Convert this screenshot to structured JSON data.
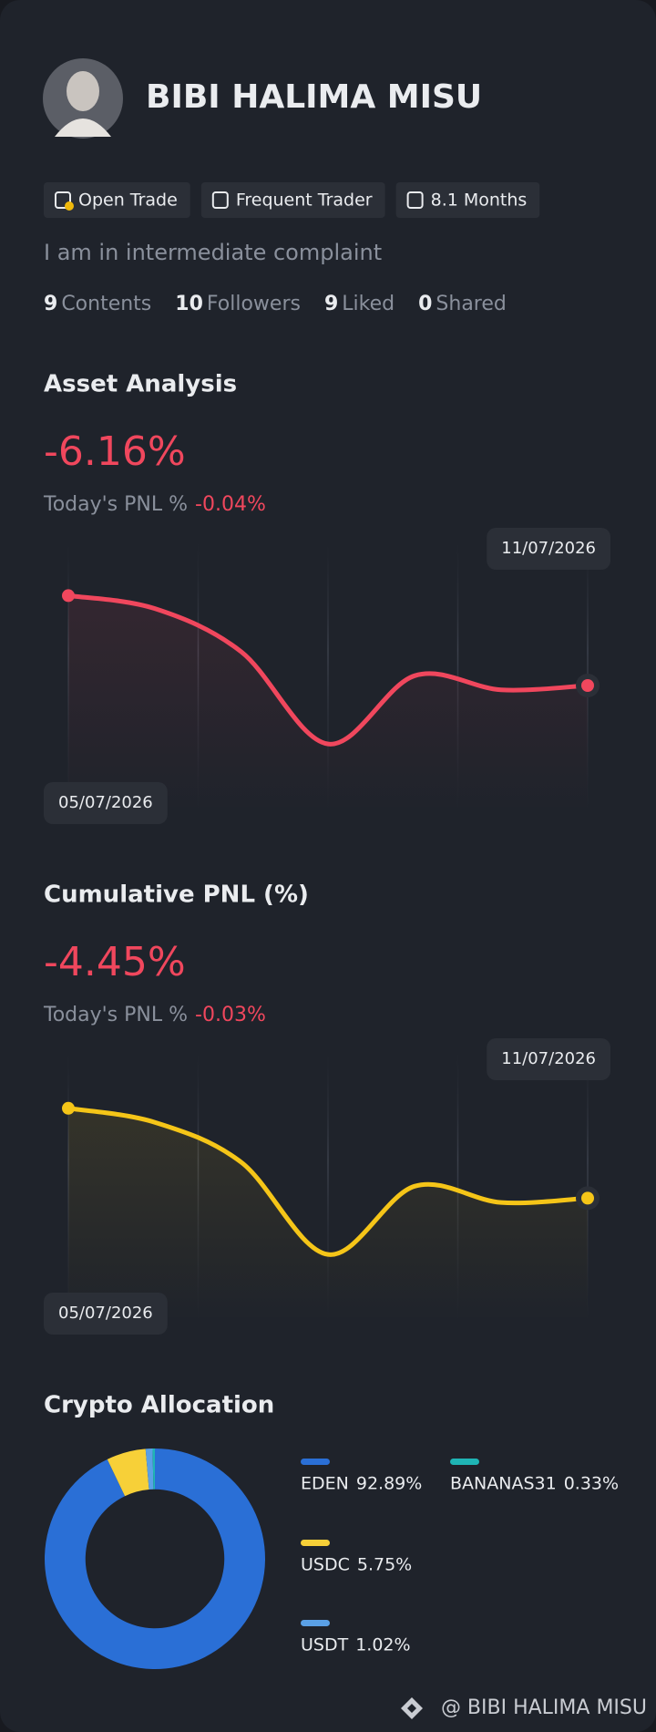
{
  "profile": {
    "name": "BIBI HALIMA MISU",
    "badges": [
      "Open Trade",
      "Frequent Trader",
      "8.1 Months"
    ],
    "bio": "I am in intermediate complaint",
    "stats": [
      {
        "value": "9",
        "label": "Contents"
      },
      {
        "value": "10",
        "label": "Followers"
      },
      {
        "value": "9",
        "label": "Liked"
      },
      {
        "value": "0",
        "label": "Shared"
      }
    ]
  },
  "chart_data": [
    {
      "type": "line",
      "title": "Asset Analysis",
      "headline": "-6.16%",
      "pnl_label": "Today's PNL %",
      "pnl_value": "-0.04%",
      "categories": [
        "05/07/2026",
        null,
        null,
        null,
        null,
        null,
        "11/07/2026"
      ],
      "series": [
        {
          "color": "#f0475d",
          "values": [
            -4.5,
            -4.74,
            -5.54,
            -7.24,
            -5.98,
            -6.24,
            -6.16
          ]
        }
      ],
      "ylim": [
        -8.5,
        -3.5
      ]
    },
    {
      "type": "line",
      "title": "Cumulative PNL (%)",
      "headline": "-4.45%",
      "pnl_label": "Today's PNL %",
      "pnl_value": "-0.03%",
      "categories": [
        "05/07/2026",
        null,
        null,
        null,
        null,
        null,
        "11/07/2026"
      ],
      "series": [
        {
          "color": "#f5c518",
          "values": [
            -2.79,
            -3.05,
            -3.79,
            -5.49,
            -4.23,
            -4.53,
            -4.45
          ]
        }
      ],
      "ylim": [
        -6.75,
        -1.75
      ]
    },
    {
      "type": "pie",
      "title": "Crypto Allocation",
      "categories": [
        "EDEN",
        "USDC",
        "USDT",
        "BANANAS31"
      ],
      "values": [
        92.89,
        5.75,
        1.02,
        0.33
      ],
      "value_labels": [
        "92.89%",
        "5.75%",
        "1.02%",
        "0.33%"
      ],
      "colors": [
        "#2a6fd6",
        "#f7d038",
        "#5aa0e6",
        "#1fb5b5"
      ],
      "inner_radius_ratio": 0.63
    }
  ],
  "footer": "@ BIBI HALIMA MISU"
}
